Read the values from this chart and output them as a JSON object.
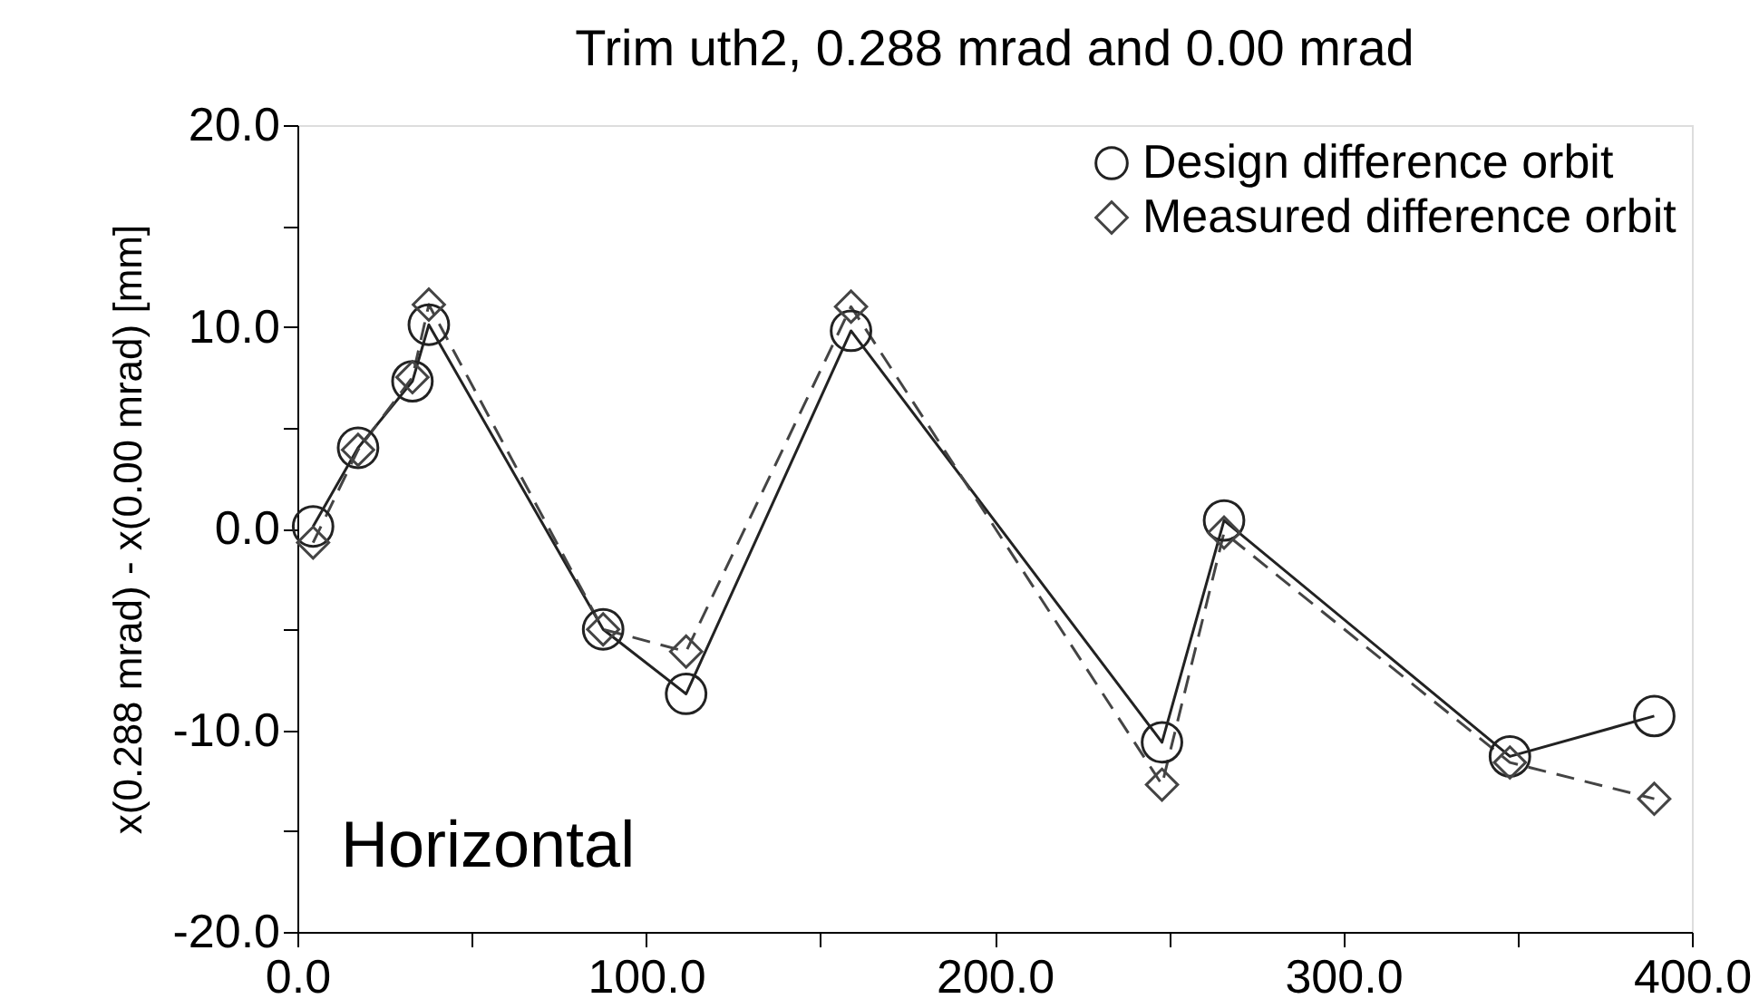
{
  "chart_data": {
    "type": "line",
    "title": "Trim uth2, 0.288 mrad and 0.00 mrad",
    "ylabel": "x(0.288 mrad) - x(0.00 mrad) [mm]",
    "annotations": [
      "Horizontal"
    ],
    "x": [
      4.5,
      17.4,
      33,
      37.7,
      87.7,
      111.5,
      158.8,
      248,
      265.8,
      347.8,
      389.2
    ],
    "series": [
      {
        "name": "Design difference orbit",
        "color": "#222222",
        "marker": "circle",
        "line_style": "solid",
        "values": [
          0.1,
          4.0,
          7.3,
          10.1,
          -5.0,
          -8.2,
          9.8,
          -10.6,
          0.4,
          -11.3,
          -9.3
        ]
      },
      {
        "name": "Measured difference orbit",
        "color": "#444444",
        "marker": "diamond",
        "line_style": "dashed",
        "values": [
          -0.7,
          3.9,
          7.5,
          11.1,
          -5.0,
          -6.1,
          11.0,
          -12.7,
          -0.2,
          -11.6,
          -13.4
        ]
      }
    ],
    "xlim": [
      0,
      400
    ],
    "xticks": [
      {
        "value": 0,
        "label": "0.0"
      },
      {
        "value": 50,
        "label": null
      },
      {
        "value": 100,
        "label": "100.0"
      },
      {
        "value": 150,
        "label": null
      },
      {
        "value": 200,
        "label": "200.0"
      },
      {
        "value": 250,
        "label": null
      },
      {
        "value": 300,
        "label": "300.0"
      },
      {
        "value": 350,
        "label": null
      },
      {
        "value": 400,
        "label": "400.0"
      }
    ],
    "ylim": [
      -20,
      20
    ],
    "yticks": [
      {
        "value": -20,
        "label": "-20.0"
      },
      {
        "value": -15,
        "label": null
      },
      {
        "value": -10,
        "label": "-10.0"
      },
      {
        "value": -5,
        "label": null
      },
      {
        "value": 0,
        "label": "0.0"
      },
      {
        "value": 5,
        "label": null
      },
      {
        "value": 10,
        "label": "10.0"
      },
      {
        "value": 15,
        "label": null
      },
      {
        "value": 20,
        "label": "20.0"
      }
    ],
    "grid": false,
    "legend": "top right"
  }
}
